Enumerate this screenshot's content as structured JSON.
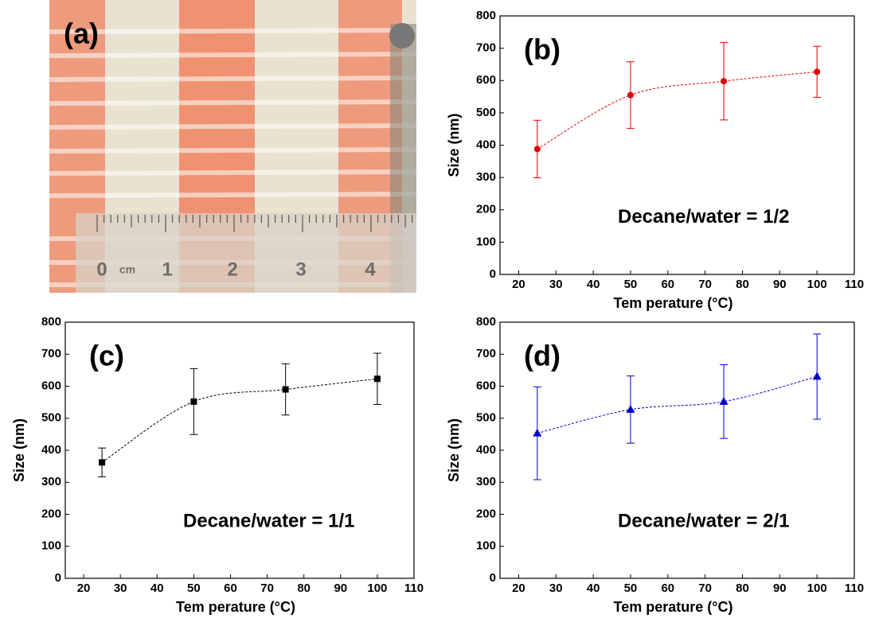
{
  "photo": {
    "label": "(a)",
    "ruler_labels": [
      "0",
      "cm",
      "1",
      "2",
      "3",
      "4"
    ]
  },
  "chart_data": [
    {
      "type": "scatter",
      "label": "(b)",
      "annotation": "Decane/water = 1/2",
      "xlabel": "Tem perature (°C)",
      "ylabel": "Size (nm)",
      "xlim": [
        15,
        110
      ],
      "ylim": [
        0,
        800
      ],
      "xticks": [
        20,
        30,
        40,
        50,
        60,
        70,
        80,
        90,
        100,
        110
      ],
      "yticks": [
        0,
        100,
        200,
        300,
        400,
        500,
        600,
        700,
        800
      ],
      "series": [
        {
          "color": "#e00000",
          "marker": "circle",
          "x": [
            25,
            50,
            75,
            100
          ],
          "values": [
            388,
            555,
            598,
            627
          ],
          "errors": [
            89,
            103,
            120,
            79
          ]
        }
      ]
    },
    {
      "type": "scatter",
      "label": "(c)",
      "annotation": "Decane/water = 1/1",
      "xlabel": "Tem perature (°C)",
      "ylabel": "Size (nm)",
      "xlim": [
        15,
        110
      ],
      "ylim": [
        0,
        800
      ],
      "xticks": [
        20,
        30,
        40,
        50,
        60,
        70,
        80,
        90,
        100,
        110
      ],
      "yticks": [
        0,
        100,
        200,
        300,
        400,
        500,
        600,
        700,
        800
      ],
      "series": [
        {
          "color": "#000000",
          "marker": "square",
          "x": [
            25,
            50,
            75,
            100
          ],
          "values": [
            362,
            552,
            590,
            623
          ],
          "errors": [
            45,
            103,
            80,
            80
          ]
        }
      ]
    },
    {
      "type": "scatter",
      "label": "(d)",
      "annotation": "Decane/water = 2/1",
      "xlabel": "Tem perature (°C)",
      "ylabel": "Size (nm)",
      "xlim": [
        15,
        110
      ],
      "ylim": [
        0,
        800
      ],
      "xticks": [
        20,
        30,
        40,
        50,
        60,
        70,
        80,
        90,
        100,
        110
      ],
      "yticks": [
        0,
        100,
        200,
        300,
        400,
        500,
        600,
        700,
        800
      ],
      "series": [
        {
          "color": "#0000cc",
          "marker": "triangle",
          "x": [
            25,
            50,
            75,
            100
          ],
          "values": [
            453,
            527,
            552,
            630
          ],
          "errors": [
            145,
            105,
            115,
            133
          ]
        }
      ]
    }
  ]
}
